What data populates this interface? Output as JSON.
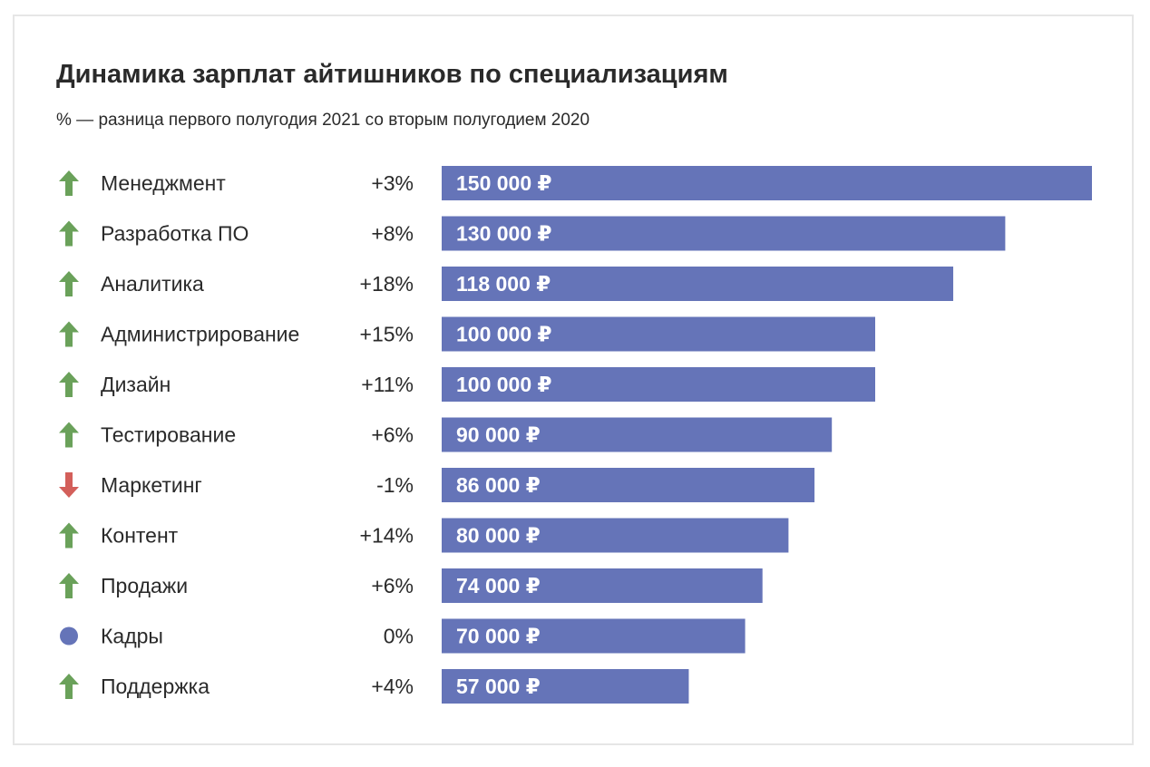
{
  "header": {
    "title": "Динамика зарплат айтишников по специализациям",
    "subtitle": "% — разница первого полугодия 2021 со вторым полугодием 2020"
  },
  "colors": {
    "bar": "#6574b8",
    "up": "#6aa15a",
    "down": "#d35f5a",
    "neutral": "#6574b8"
  },
  "chart_data": {
    "type": "bar",
    "orientation": "horizontal",
    "title": "Динамика зарплат айтишников по специализациям",
    "subtitle": "% — разница первого полугодия 2021 со вторым полугодием 2020",
    "categories": [
      "Менеджмент",
      "Разработка ПО",
      "Аналитика",
      "Администрирование",
      "Дизайн",
      "Тестирование",
      "Маркетинг",
      "Контент",
      "Продажи",
      "Кадры",
      "Поддержка"
    ],
    "values": [
      150000,
      130000,
      118000,
      100000,
      100000,
      90000,
      86000,
      80000,
      74000,
      70000,
      57000
    ],
    "value_labels": [
      "150 000 ₽",
      "130 000 ₽",
      "118 000 ₽",
      "100 000 ₽",
      "100 000 ₽",
      "90 000 ₽",
      "86 000 ₽",
      "80 000 ₽",
      "74 000 ₽",
      "70 000 ₽",
      "57 000 ₽"
    ],
    "change_labels": [
      "+3%",
      "+8%",
      "+18%",
      "+15%",
      "+11%",
      "+6%",
      "-1%",
      "+14%",
      "+6%",
      "0%",
      "+4%"
    ],
    "trend_icons": [
      "arrow-up-icon",
      "arrow-up-icon",
      "arrow-up-icon",
      "arrow-up-icon",
      "arrow-up-icon",
      "arrow-up-icon",
      "arrow-down-icon",
      "arrow-up-icon",
      "arrow-up-icon",
      "dot-icon",
      "arrow-up-icon"
    ],
    "xlim": [
      0,
      150000
    ],
    "grid": false,
    "legend": "none"
  }
}
